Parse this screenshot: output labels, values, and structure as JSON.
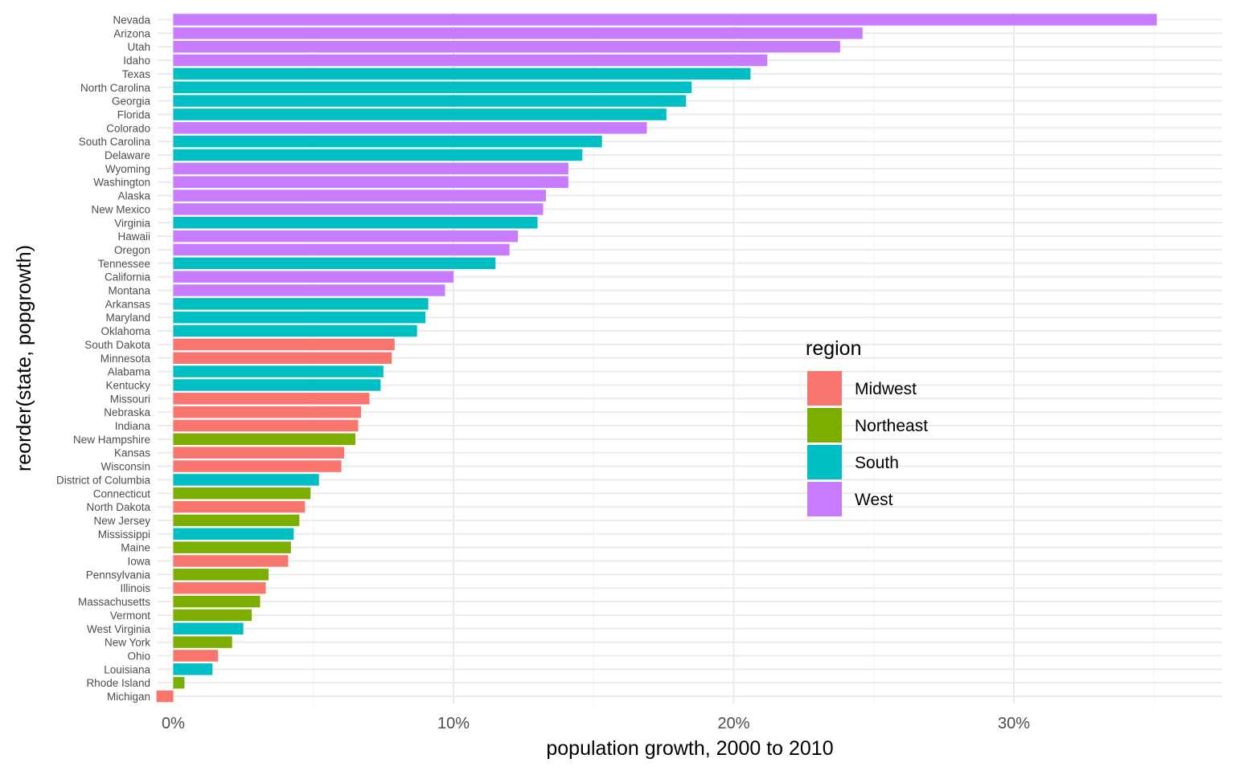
{
  "chart_data": {
    "type": "bar",
    "orientation": "horizontal",
    "title": "",
    "xlabel": "population growth, 2000 to 2010",
    "ylabel": "reorder(state, popgrowth)",
    "xlim": [
      -0.005,
      0.375
    ],
    "x_ticks": [
      0,
      0.1,
      0.2,
      0.3
    ],
    "x_tick_labels": [
      "0%",
      "10%",
      "20%",
      "30%"
    ],
    "grid": true,
    "legend": {
      "title": "region",
      "position": "right",
      "entries": [
        {
          "name": "Midwest",
          "color": "#F8766D"
        },
        {
          "name": "Northeast",
          "color": "#7CAE00"
        },
        {
          "name": "South",
          "color": "#00BFC4"
        },
        {
          "name": "West",
          "color": "#C77CFF"
        }
      ]
    },
    "bars": [
      {
        "state": "Nevada",
        "value": 0.351,
        "region": "West"
      },
      {
        "state": "Arizona",
        "value": 0.246,
        "region": "West"
      },
      {
        "state": "Utah",
        "value": 0.238,
        "region": "West"
      },
      {
        "state": "Idaho",
        "value": 0.212,
        "region": "West"
      },
      {
        "state": "Texas",
        "value": 0.206,
        "region": "South"
      },
      {
        "state": "North Carolina",
        "value": 0.185,
        "region": "South"
      },
      {
        "state": "Georgia",
        "value": 0.183,
        "region": "South"
      },
      {
        "state": "Florida",
        "value": 0.176,
        "region": "South"
      },
      {
        "state": "Colorado",
        "value": 0.169,
        "region": "West"
      },
      {
        "state": "South Carolina",
        "value": 0.153,
        "region": "South"
      },
      {
        "state": "Delaware",
        "value": 0.146,
        "region": "South"
      },
      {
        "state": "Wyoming",
        "value": 0.141,
        "region": "West"
      },
      {
        "state": "Washington",
        "value": 0.141,
        "region": "West"
      },
      {
        "state": "Alaska",
        "value": 0.133,
        "region": "West"
      },
      {
        "state": "New Mexico",
        "value": 0.132,
        "region": "West"
      },
      {
        "state": "Virginia",
        "value": 0.13,
        "region": "South"
      },
      {
        "state": "Hawaii",
        "value": 0.123,
        "region": "West"
      },
      {
        "state": "Oregon",
        "value": 0.12,
        "region": "West"
      },
      {
        "state": "Tennessee",
        "value": 0.115,
        "region": "South"
      },
      {
        "state": "California",
        "value": 0.1,
        "region": "West"
      },
      {
        "state": "Montana",
        "value": 0.097,
        "region": "West"
      },
      {
        "state": "Arkansas",
        "value": 0.091,
        "region": "South"
      },
      {
        "state": "Maryland",
        "value": 0.09,
        "region": "South"
      },
      {
        "state": "Oklahoma",
        "value": 0.087,
        "region": "South"
      },
      {
        "state": "South Dakota",
        "value": 0.079,
        "region": "Midwest"
      },
      {
        "state": "Minnesota",
        "value": 0.078,
        "region": "Midwest"
      },
      {
        "state": "Alabama",
        "value": 0.075,
        "region": "South"
      },
      {
        "state": "Kentucky",
        "value": 0.074,
        "region": "South"
      },
      {
        "state": "Missouri",
        "value": 0.07,
        "region": "Midwest"
      },
      {
        "state": "Nebraska",
        "value": 0.067,
        "region": "Midwest"
      },
      {
        "state": "Indiana",
        "value": 0.066,
        "region": "Midwest"
      },
      {
        "state": "New Hampshire",
        "value": 0.065,
        "region": "Northeast"
      },
      {
        "state": "Kansas",
        "value": 0.061,
        "region": "Midwest"
      },
      {
        "state": "Wisconsin",
        "value": 0.06,
        "region": "Midwest"
      },
      {
        "state": "District of Columbia",
        "value": 0.052,
        "region": "South"
      },
      {
        "state": "Connecticut",
        "value": 0.049,
        "region": "Northeast"
      },
      {
        "state": "North Dakota",
        "value": 0.047,
        "region": "Midwest"
      },
      {
        "state": "New Jersey",
        "value": 0.045,
        "region": "Northeast"
      },
      {
        "state": "Mississippi",
        "value": 0.043,
        "region": "South"
      },
      {
        "state": "Maine",
        "value": 0.042,
        "region": "Northeast"
      },
      {
        "state": "Iowa",
        "value": 0.041,
        "region": "Midwest"
      },
      {
        "state": "Pennsylvania",
        "value": 0.034,
        "region": "Northeast"
      },
      {
        "state": "Illinois",
        "value": 0.033,
        "region": "Midwest"
      },
      {
        "state": "Massachusetts",
        "value": 0.031,
        "region": "Northeast"
      },
      {
        "state": "Vermont",
        "value": 0.028,
        "region": "Northeast"
      },
      {
        "state": "West Virginia",
        "value": 0.025,
        "region": "South"
      },
      {
        "state": "New York",
        "value": 0.021,
        "region": "Northeast"
      },
      {
        "state": "Ohio",
        "value": 0.016,
        "region": "Midwest"
      },
      {
        "state": "Louisiana",
        "value": 0.014,
        "region": "South"
      },
      {
        "state": "Rhode Island",
        "value": 0.004,
        "region": "Northeast"
      },
      {
        "state": "Michigan",
        "value": -0.006,
        "region": "Midwest"
      }
    ]
  }
}
